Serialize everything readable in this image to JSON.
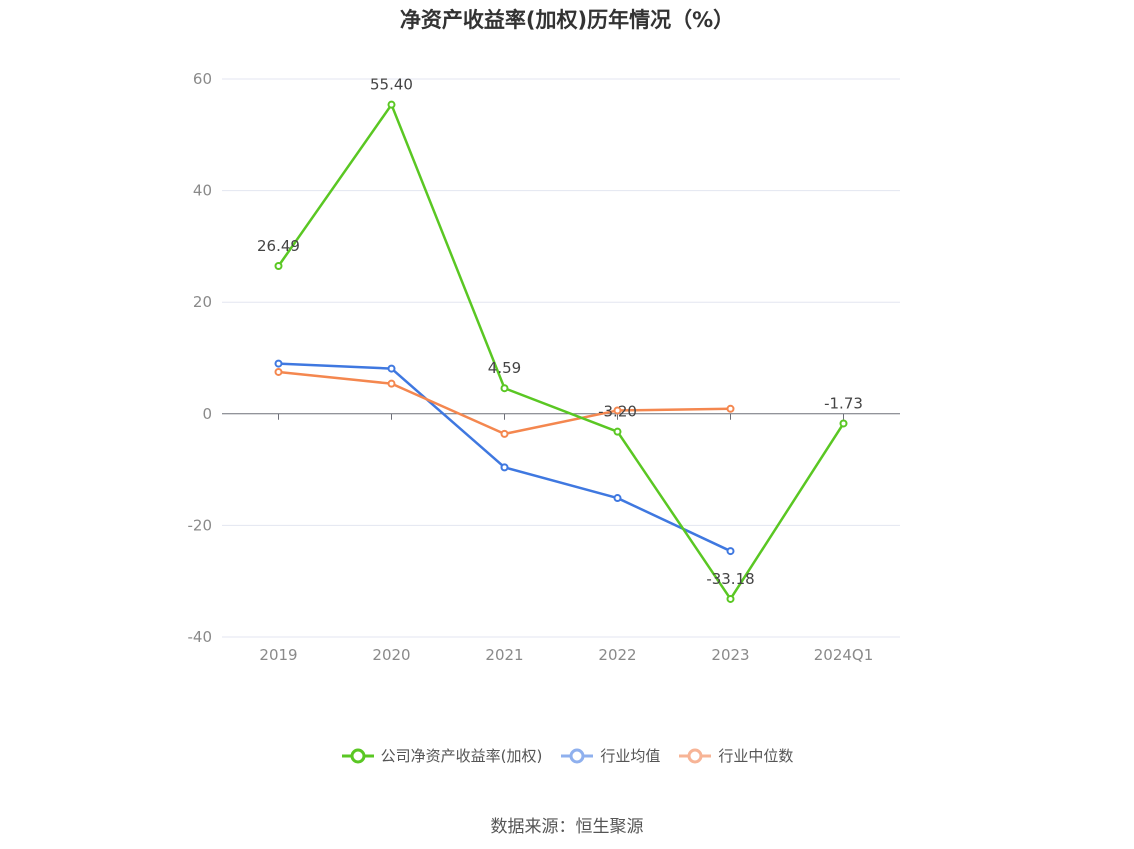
{
  "chart_data": {
    "type": "line",
    "title": "净资产收益率(加权)历年情况（%）",
    "categories": [
      "2019",
      "2020",
      "2021",
      "2022",
      "2023",
      "2024Q1"
    ],
    "ylim": [
      -40,
      60
    ],
    "yticks": [
      "60",
      "40",
      "20",
      "0",
      "-20",
      "-40"
    ],
    "ytick_values": [
      60,
      40,
      20,
      0,
      -20,
      -40
    ],
    "grid": true,
    "legend_position": "bottom",
    "series": [
      {
        "name": "公司净资产收益率(加权)",
        "color": "#5ac723",
        "values": [
          26.49,
          55.4,
          4.59,
          -3.2,
          -33.18,
          -1.73
        ],
        "labels": [
          "26.49",
          "55.40",
          "4.59",
          "-3.20",
          "-33.18",
          "-1.73"
        ]
      },
      {
        "name": "行业均值",
        "color": "#3f78e0",
        "values": [
          9.0,
          8.1,
          -9.6,
          -15.1,
          -24.6,
          null
        ]
      },
      {
        "name": "行业中位数",
        "color": "#f4874f",
        "values": [
          7.5,
          5.4,
          -3.6,
          0.6,
          0.9,
          null
        ]
      }
    ]
  },
  "source": "数据来源：恒生聚源"
}
